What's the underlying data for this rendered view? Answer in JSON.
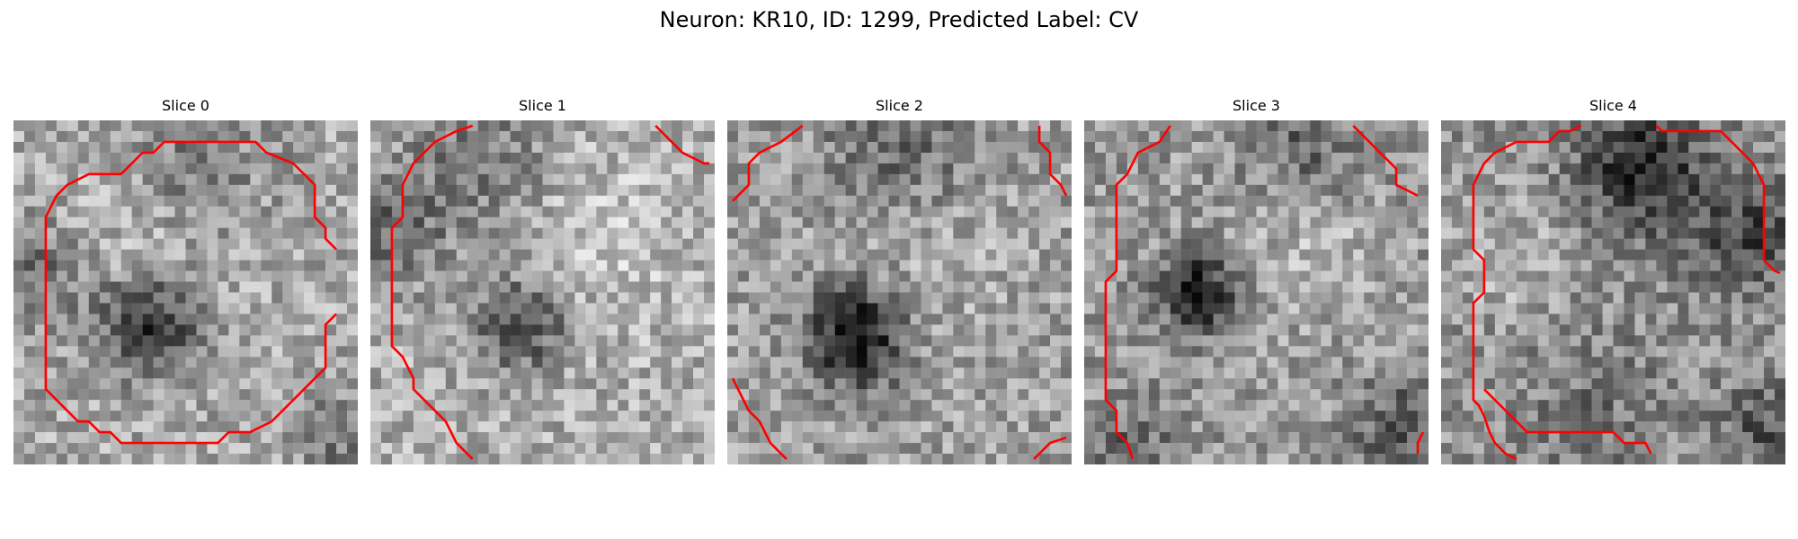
{
  "figure": {
    "title": "Neuron: KR10, ID: 1299, Predicted Label: CV",
    "contour_color": "#ff0000"
  },
  "panels": [
    {
      "title": "Slice 0"
    },
    {
      "title": "Slice 1"
    },
    {
      "title": "Slice 2"
    },
    {
      "title": "Slice 3"
    },
    {
      "title": "Slice 4"
    }
  ]
}
